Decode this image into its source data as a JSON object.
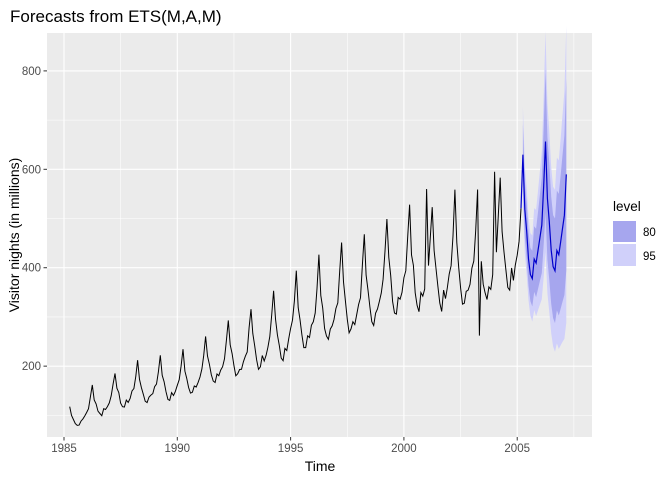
{
  "chart_data": {
    "type": "line",
    "title": "Forecasts from ETS(M,A,M)",
    "xlabel": "Time",
    "ylabel": "Visitor nights (in millions)",
    "xlim": [
      1984.25,
      2008.3
    ],
    "ylim": [
      56,
      877
    ],
    "x_ticks": [
      1985,
      1990,
      1995,
      2000,
      2005
    ],
    "x_tick_labels": [
      "1985",
      "1990",
      "1995",
      "2000",
      "2005"
    ],
    "y_ticks": [
      200,
      400,
      600,
      800
    ],
    "y_tick_labels": [
      "200",
      "400",
      "600",
      "800"
    ],
    "grid": true,
    "legend": {
      "title": "level",
      "position": "right",
      "entries": [
        "80",
        "95"
      ]
    },
    "colors": {
      "panel": "#ebebeb",
      "grid": "#ffffff",
      "history_line": "#000000",
      "forecast_line": "#0000cc",
      "band_80": "#a6a6ee",
      "band_95": "#d0d0fa"
    },
    "history": {
      "start": 1985.25,
      "frequency": 12,
      "annual_base": [
        88,
        120,
        140,
        158,
        165,
        172,
        196,
        221,
        236,
        262,
        294,
        317,
        334,
        350,
        373,
        395,
        397,
        410,
        412,
        438,
        460
      ],
      "season": [
        1.34,
        1.1,
        1.0,
        0.88,
        0.81,
        0.79,
        0.87,
        0.85,
        0.9,
        0.95,
        1.0,
        1.16
      ]
    },
    "forecast": {
      "start": 2005.25,
      "frequency": 12,
      "points": 24,
      "annual_base": [
        470,
        490,
        510
      ],
      "season": [
        1.34,
        1.1,
        1.0,
        0.88,
        0.81,
        0.79,
        0.87,
        0.85,
        0.9,
        0.95,
        1.0,
        1.16
      ],
      "band80_halfwidth_start": 0.1,
      "band80_halfwidth_growth": 0.01,
      "band95_ratio": 1.55
    }
  }
}
